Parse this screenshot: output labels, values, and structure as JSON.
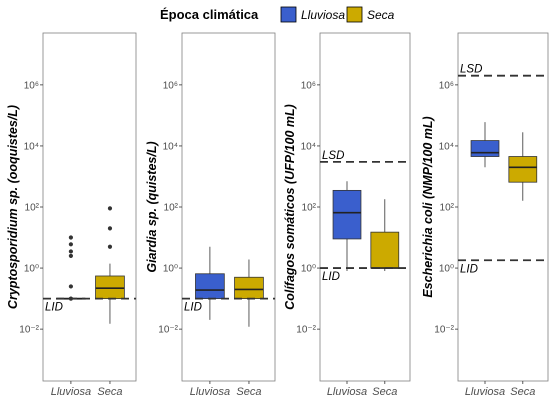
{
  "legend": {
    "title": "Época climática",
    "items": [
      {
        "label": "Lluviosa",
        "color": "#3a5fcd"
      },
      {
        "label": "Seca",
        "color": "#ccaa00"
      }
    ]
  },
  "chart_data": [
    {
      "type": "box",
      "ylabel": "Cryptosporidium sp. (ooquistes/L)",
      "y_scale": "log10",
      "ylim": [
        0.0002,
        50000000
      ],
      "ytick_labels": [
        "10⁶",
        "10⁴",
        "10²",
        "10⁰",
        "10⁻²"
      ],
      "categories": [
        "Lluviosa",
        "Seca"
      ],
      "boxes": [
        {
          "group": "Lluviosa",
          "min": 0.1,
          "q1": 0.1,
          "median": 0.1,
          "q3": 0.1,
          "max": 0.1,
          "outliers": [
            0.1,
            0.25,
            2.5,
            3.5,
            6,
            10
          ]
        },
        {
          "group": "Seca",
          "min": 0.015,
          "q1": 0.1,
          "median": 0.22,
          "q3": 0.55,
          "max": 1.4,
          "outliers": [
            5,
            20,
            90
          ]
        }
      ],
      "hlines": [
        {
          "label": "LID",
          "y": 0.1
        }
      ]
    },
    {
      "type": "box",
      "ylabel": "Giardia sp. (quistes/L)",
      "y_scale": "log10",
      "ylim": [
        0.0002,
        50000000
      ],
      "ytick_labels": [
        "10⁶",
        "10⁴",
        "10²",
        "10⁰",
        "10⁻²"
      ],
      "categories": [
        "Lluviosa",
        "Seca"
      ],
      "boxes": [
        {
          "group": "Lluviosa",
          "min": 0.02,
          "q1": 0.1,
          "median": 0.19,
          "q3": 0.65,
          "max": 5
        },
        {
          "group": "Seca",
          "min": 0.012,
          "q1": 0.1,
          "median": 0.2,
          "q3": 0.5,
          "max": 1.9
        }
      ],
      "hlines": [
        {
          "label": "LID",
          "y": 0.1
        }
      ]
    },
    {
      "type": "box",
      "ylabel": "Colífagos somáticos (UFP/100 mL)",
      "y_scale": "log10",
      "ylim": [
        0.0002,
        50000000
      ],
      "ytick_labels": [
        "10⁶",
        "10⁴",
        "10²",
        "10⁰",
        "10⁻²"
      ],
      "categories": [
        "Lluviosa",
        "Seca"
      ],
      "boxes": [
        {
          "group": "Lluviosa",
          "min": 0.8,
          "q1": 9,
          "median": 65,
          "q3": 350,
          "max": 700
        },
        {
          "group": "Seca",
          "min": 0.8,
          "q1": 1,
          "median": 1,
          "q3": 15,
          "max": 180
        }
      ],
      "hlines": [
        {
          "label": "LSD",
          "y": 3000
        },
        {
          "label": "LID",
          "y": 1
        }
      ]
    },
    {
      "type": "box",
      "ylabel": "Escherichia coli (NMP/100 mL)",
      "y_scale": "log10",
      "ylim": [
        0.0002,
        50000000
      ],
      "ytick_labels": [
        "10⁶",
        "10⁴",
        "10²",
        "10⁰",
        "10⁻²"
      ],
      "categories": [
        "Lluviosa",
        "Seca"
      ],
      "boxes": [
        {
          "group": "Lluviosa",
          "min": 2000,
          "q1": 4500,
          "median": 6000,
          "q3": 15000,
          "max": 60000
        },
        {
          "group": "Seca",
          "min": 160,
          "q1": 650,
          "median": 2000,
          "q3": 4500,
          "max": 28000
        }
      ],
      "hlines": [
        {
          "label": "LSD",
          "y": 2000000
        },
        {
          "label": "LID",
          "y": 1.8
        }
      ]
    }
  ]
}
